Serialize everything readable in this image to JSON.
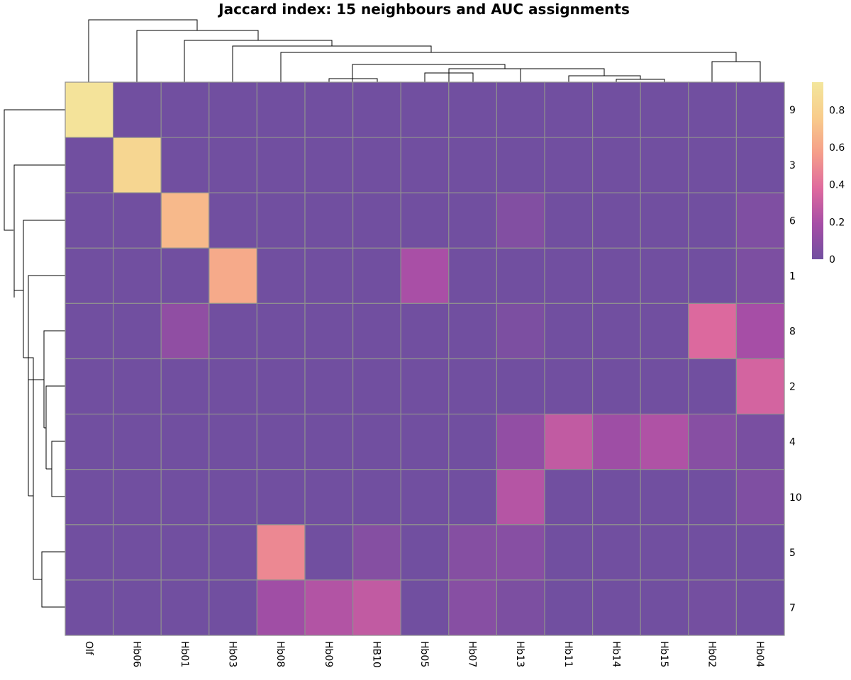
{
  "chart_data": {
    "type": "heatmap",
    "title": "Jaccard index: 15 neighbours and AUC assignments",
    "columns": [
      "Olf",
      "Hb06",
      "Hb01",
      "Hb03",
      "Hb08",
      "Hb09",
      "HB10",
      "Hb05",
      "Hb07",
      "Hb13",
      "Hb11",
      "Hb14",
      "Hb15",
      "Hb02",
      "Hb04"
    ],
    "rows": [
      "9",
      "3",
      "6",
      "1",
      "8",
      "2",
      "4",
      "10",
      "5",
      "7"
    ],
    "values": [
      [
        0.93,
        0.0,
        0.0,
        0.0,
        0.0,
        0.0,
        0.0,
        0.0,
        0.0,
        0.0,
        0.0,
        0.0,
        0.0,
        0.0,
        0.0
      ],
      [
        0.0,
        0.83,
        0.0,
        0.0,
        0.0,
        0.0,
        0.0,
        0.0,
        0.0,
        0.0,
        0.0,
        0.0,
        0.0,
        0.0,
        0.0
      ],
      [
        0.0,
        0.0,
        0.68,
        0.0,
        0.0,
        0.0,
        0.0,
        0.0,
        0.0,
        0.06,
        0.0,
        0.0,
        0.0,
        0.0,
        0.05
      ],
      [
        0.0,
        0.0,
        0.0,
        0.62,
        0.0,
        0.0,
        0.0,
        0.2,
        0.0,
        0.0,
        0.0,
        0.0,
        0.0,
        0.0,
        0.04
      ],
      [
        0.0,
        0.0,
        0.11,
        0.0,
        0.0,
        0.0,
        0.0,
        0.0,
        0.0,
        0.04,
        0.0,
        0.0,
        0.0,
        0.37,
        0.19
      ],
      [
        0.0,
        0.0,
        0.0,
        0.0,
        0.0,
        0.0,
        0.0,
        0.0,
        0.0,
        0.0,
        0.0,
        0.0,
        0.0,
        0.0,
        0.34
      ],
      [
        0.0,
        0.0,
        0.0,
        0.0,
        0.0,
        0.0,
        0.0,
        0.0,
        0.0,
        0.12,
        0.28,
        0.16,
        0.22,
        0.08,
        0.03
      ],
      [
        0.0,
        0.0,
        0.0,
        0.0,
        0.0,
        0.0,
        0.0,
        0.0,
        0.0,
        0.24,
        0.0,
        0.0,
        0.0,
        0.0,
        0.05
      ],
      [
        0.0,
        0.0,
        0.0,
        0.0,
        0.49,
        0.0,
        0.07,
        0.0,
        0.07,
        0.08,
        0.0,
        0.0,
        0.0,
        0.0,
        0.0
      ],
      [
        0.0,
        0.0,
        0.0,
        0.0,
        0.17,
        0.23,
        0.28,
        0.0,
        0.08,
        0.04,
        0.0,
        0.0,
        0.0,
        0.01,
        0.0
      ]
    ],
    "color_scale": {
      "min": 0,
      "max": 0.95,
      "stops": [
        "#714fa0",
        "#a64ea6",
        "#df6a9e",
        "#f59e8a",
        "#f8cc8b",
        "#f3e69c"
      ]
    },
    "colorbar_ticks": [
      0,
      0.2,
      0.4,
      0.6,
      0.8
    ],
    "colorbar_tick_labels": [
      "0",
      "0.2",
      "0.4",
      "0.6",
      "0.8"
    ],
    "legend_position": "top-right",
    "grid": true
  }
}
